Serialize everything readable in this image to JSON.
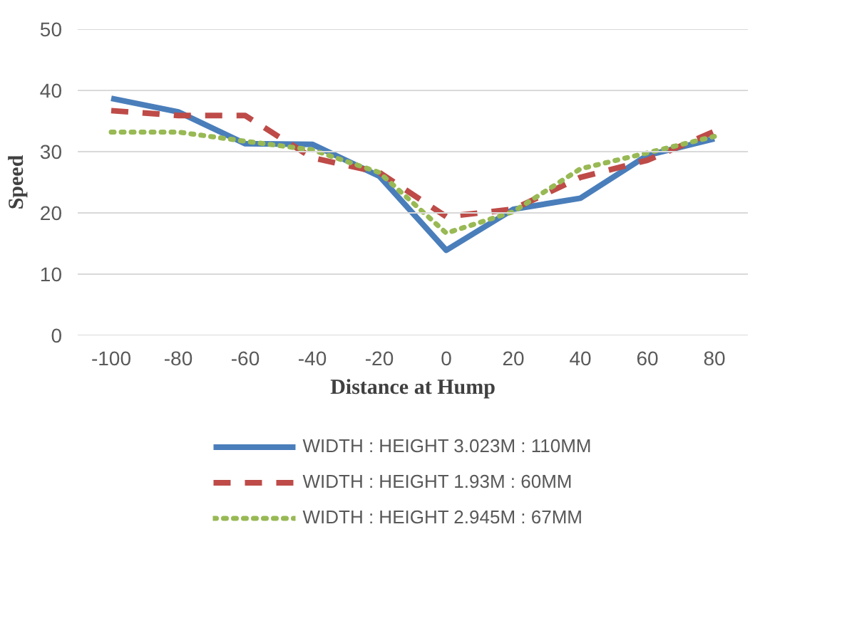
{
  "chart_data": {
    "type": "line",
    "xlabel": "Distance at Hump",
    "ylabel": "Speed",
    "categories": [
      "-100",
      "-80",
      "-60",
      "-40",
      "-20",
      "0",
      "20",
      "40",
      "60",
      "80"
    ],
    "ylim": [
      0,
      50
    ],
    "yticks": [
      0,
      10,
      20,
      30,
      40,
      50
    ],
    "grid": "y",
    "legend": "bottom",
    "series": [
      {
        "name": "WIDTH : HEIGHT 3.023M : 110MM",
        "color": "#4a7ebb",
        "line_style": "solid",
        "values": [
          38.7,
          36.5,
          31.3,
          31.2,
          26,
          13.9,
          20.6,
          22.4,
          29.4,
          32.1
        ]
      },
      {
        "name": "WIDTH : HEIGHT 1.93M : 60MM",
        "color": "#be4b48",
        "line_style": "dashed",
        "values": [
          36.7,
          35.9,
          35.9,
          29,
          26.6,
          19.4,
          20.6,
          25.8,
          28.6,
          33.3
        ]
      },
      {
        "name": "WIDTH : HEIGHT 2.945M : 67MM",
        "color": "#98b954",
        "line_style": "dotted",
        "values": [
          33.2,
          33.2,
          31.7,
          30.3,
          26.6,
          16.7,
          20.2,
          27.2,
          29.8,
          32.5
        ]
      }
    ]
  }
}
